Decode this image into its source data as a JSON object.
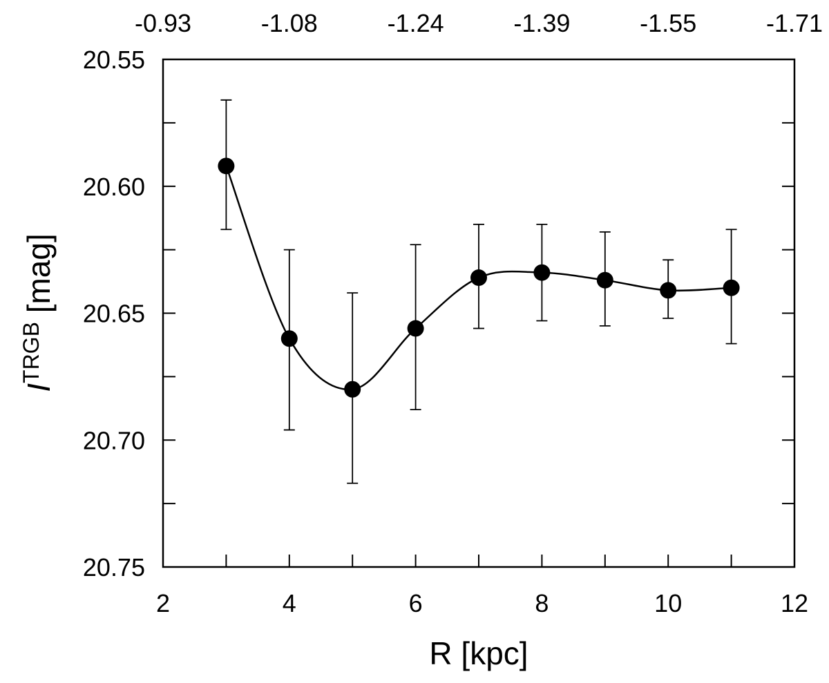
{
  "chart_data": {
    "type": "scatter",
    "xlabel": "R [kpc]",
    "ylabel_main": "I",
    "ylabel_superscript": "TRGB",
    "ylabel_suffix": " [mag]",
    "xlim": [
      2,
      12
    ],
    "ylim": [
      20.55,
      20.75
    ],
    "y_inverted": true,
    "grid": false,
    "legend": "none",
    "x_ticks": [
      2,
      4,
      6,
      8,
      10,
      12
    ],
    "x_tick_labels": [
      "2",
      "4",
      "6",
      "8",
      "10",
      "12"
    ],
    "y_ticks": [
      20.55,
      20.6,
      20.65,
      20.7,
      20.75
    ],
    "y_tick_labels": [
      "20.55",
      "20.60",
      "20.65",
      "20.70",
      "20.75"
    ],
    "top_axis_labels": [
      "-0.93",
      "-1.08",
      "-1.24",
      "-1.39",
      "-1.55",
      "-1.71"
    ],
    "series": [
      {
        "name": "I_TRGB",
        "x": [
          3,
          4,
          5,
          6,
          7,
          8,
          9,
          10,
          11
        ],
        "y": [
          20.592,
          20.66,
          20.68,
          20.656,
          20.636,
          20.634,
          20.637,
          20.641,
          20.64
        ],
        "err_upper": [
          0.026,
          0.035,
          0.038,
          0.033,
          0.021,
          0.019,
          0.019,
          0.012,
          0.023
        ],
        "err_lower": [
          0.025,
          0.036,
          0.037,
          0.032,
          0.02,
          0.019,
          0.018,
          0.011,
          0.022
        ],
        "smooth_curve": true
      }
    ]
  }
}
